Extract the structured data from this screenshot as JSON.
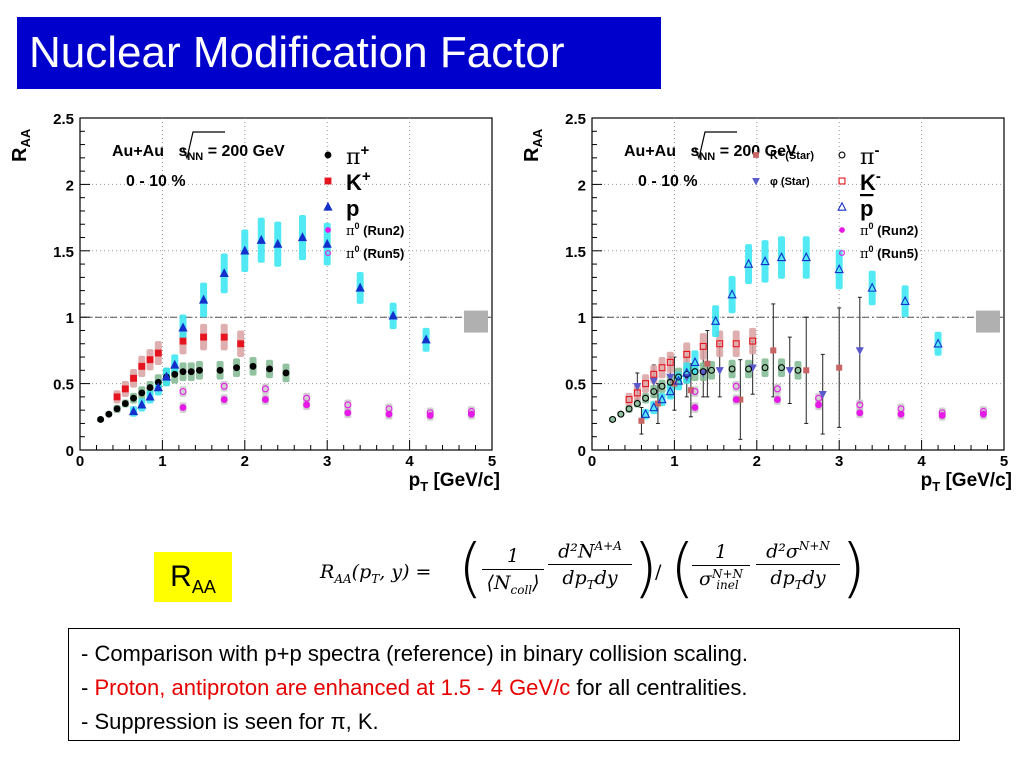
{
  "title": "Nuclear Modification Factor",
  "raa_box": {
    "main": "R",
    "sub": "AA"
  },
  "formula": {
    "lhs": "R",
    "lhs_sub": "AA",
    "lhs_args": "(p",
    "lhs_args_sub": "T",
    "lhs_args_end": ", y) =",
    "frac1_num": "1",
    "frac1_den": "⟨N",
    "frac1_den_sub": "coll",
    "frac1_den_end": "⟩",
    "frac2_num": "d²N",
    "frac2_num_sup": "A+A",
    "frac2_den": "dp",
    "frac2_den_sub": "T",
    "frac2_den_end": "dy",
    "divide": "/",
    "frac3_num": "1",
    "frac3_den": "σ",
    "frac3_den_sup": "N+N",
    "frac3_den_sub": "inel",
    "frac4_num": "d²σ",
    "frac4_num_sup": "N+N",
    "frac4_den": "dp",
    "frac4_den_sub": "T",
    "frac4_den_end": "dy"
  },
  "notes": {
    "line1": "- Comparison with p+p spectra (reference) in binary collision scaling.",
    "line2_prefix": "- ",
    "line2_red": "Proton, antiproton are enhanced at 1.5 - 4 GeV/c",
    "line2_suffix": " for all centralities.",
    "line3": "- Suppression is seen for π, K."
  },
  "colors": {
    "title_bg": "#0000cc",
    "raa_bg": "#ffff00",
    "red_text": "#e60000",
    "sys_cyan": "#33e6f2",
    "sys_green": "#7fb98f",
    "sys_red": "#d9a0a0",
    "pi": "#000000",
    "k": "#e6141e",
    "p": "#1430cc",
    "pi0": "#e619e6",
    "kstar": "#c86464",
    "phi": "#5a5acc"
  },
  "chart_data": [
    {
      "type": "scatter",
      "system": "Au+Au",
      "sqrt_label": "s",
      "sqrt_sub": "NN",
      "energy": "= 200 GeV",
      "centrality": "0 - 10 %",
      "ylabel": "R",
      "ylabel_sub": "AA",
      "xlabel": "p",
      "xlabel_sub": "T",
      "xlabel_unit": "[GeV/c]",
      "xlim": [
        0,
        5
      ],
      "ylim": [
        0,
        2.5
      ],
      "xticks": [
        "0",
        "1",
        "2",
        "3",
        "4",
        "5"
      ],
      "yticks": [
        "0",
        "0.5",
        "1",
        "1.5",
        "2",
        "2.5"
      ],
      "reference_line": 1,
      "legend_position": "top-right",
      "series": [
        {
          "name": "π",
          "name_sup": "+",
          "marker": "circle",
          "filled": true,
          "color": "#000000",
          "sys_color": "#7fb98f",
          "x": [
            0.25,
            0.35,
            0.45,
            0.55,
            0.65,
            0.75,
            0.85,
            0.95,
            1.05,
            1.15,
            1.25,
            1.35,
            1.45,
            1.7,
            1.9,
            2.1,
            2.3,
            2.5
          ],
          "y": [
            0.23,
            0.27,
            0.31,
            0.35,
            0.39,
            0.43,
            0.47,
            0.51,
            0.55,
            0.57,
            0.59,
            0.59,
            0.6,
            0.6,
            0.62,
            0.63,
            0.61,
            0.58
          ],
          "sys": [
            0.02,
            0.02,
            0.03,
            0.03,
            0.04,
            0.05,
            0.05,
            0.06,
            0.07,
            0.07,
            0.07,
            0.07,
            0.07,
            0.07,
            0.07,
            0.07,
            0.07,
            0.07
          ]
        },
        {
          "name": "K",
          "name_sup": "+",
          "marker": "square",
          "filled": true,
          "color": "#e6141e",
          "sys_color": "#d9a0a0",
          "x": [
            0.45,
            0.55,
            0.65,
            0.75,
            0.85,
            0.95,
            1.25,
            1.5,
            1.75,
            1.95
          ],
          "y": [
            0.4,
            0.46,
            0.54,
            0.63,
            0.68,
            0.73,
            0.82,
            0.85,
            0.85,
            0.8
          ],
          "sys": [
            0.05,
            0.06,
            0.07,
            0.08,
            0.08,
            0.09,
            0.1,
            0.1,
            0.1,
            0.1
          ]
        },
        {
          "name": "p",
          "name_sup": "",
          "marker": "triangle",
          "filled": true,
          "color": "#1430cc",
          "sys_color": "#33e6f2",
          "x": [
            0.65,
            0.75,
            0.85,
            0.95,
            1.05,
            1.15,
            1.25,
            1.5,
            1.75,
            2.0,
            2.2,
            2.4,
            2.7,
            3.0,
            3.4,
            3.8,
            4.2
          ],
          "y": [
            0.29,
            0.34,
            0.4,
            0.47,
            0.55,
            0.64,
            0.92,
            1.13,
            1.33,
            1.5,
            1.58,
            1.55,
            1.6,
            1.55,
            1.22,
            1.01,
            0.83
          ],
          "sys": [
            0.04,
            0.05,
            0.05,
            0.06,
            0.07,
            0.08,
            0.1,
            0.13,
            0.15,
            0.16,
            0.17,
            0.17,
            0.17,
            0.16,
            0.12,
            0.1,
            0.09
          ]
        },
        {
          "name": "π",
          "name_sup": "0",
          "name_suffix": " (Run2)",
          "marker": "circle",
          "filled": true,
          "color": "#e619e6",
          "sys_color": "#c8c8c8",
          "x": [
            1.25,
            1.75,
            2.25,
            2.75,
            3.25,
            3.75,
            4.25,
            4.75
          ],
          "y": [
            0.32,
            0.38,
            0.38,
            0.34,
            0.28,
            0.27,
            0.26,
            0.27
          ],
          "sys": [
            0.04,
            0.04,
            0.04,
            0.04,
            0.04,
            0.04,
            0.04,
            0.04
          ]
        },
        {
          "name": "π",
          "name_sup": "0",
          "name_suffix": " (Run5)",
          "marker": "circle",
          "filled": false,
          "color": "#e619e6",
          "sys_color": "#c8c8c8",
          "x": [
            1.25,
            1.75,
            2.25,
            2.75,
            3.25,
            3.75,
            4.25,
            4.75
          ],
          "y": [
            0.44,
            0.48,
            0.46,
            0.39,
            0.34,
            0.31,
            0.28,
            0.29
          ],
          "sys": [
            0.04,
            0.04,
            0.04,
            0.04,
            0.04,
            0.04,
            0.04,
            0.04
          ]
        }
      ]
    },
    {
      "type": "scatter",
      "system": "Au+Au",
      "sqrt_label": "s",
      "sqrt_sub": "NN",
      "energy": "= 200 GeV",
      "centrality": "0 - 10 %",
      "ylabel": "R",
      "ylabel_sub": "AA",
      "xlabel": "p",
      "xlabel_sub": "T",
      "xlabel_unit": "[GeV/c]",
      "xlim": [
        0,
        5
      ],
      "ylim": [
        0,
        2.5
      ],
      "xticks": [
        "0",
        "1",
        "2",
        "3",
        "4",
        "5"
      ],
      "yticks": [
        "0",
        "0.5",
        "1",
        "1.5",
        "2",
        "2.5"
      ],
      "reference_line": 1,
      "legend_position": "top-right",
      "series": [
        {
          "name": "K* (Star)",
          "name_sup": "",
          "marker": "square",
          "filled": true,
          "color": "#c86464",
          "sys_color": "#c86464",
          "star": true,
          "small": true,
          "x": [
            0.6,
            0.8,
            1.0,
            1.2,
            1.4,
            1.8,
            2.2,
            2.6,
            3.0
          ],
          "y": [
            0.22,
            0.35,
            0.5,
            0.45,
            0.65,
            0.38,
            0.75,
            0.6,
            0.62
          ],
          "sys": [
            0.1,
            0.15,
            0.2,
            0.2,
            0.25,
            0.3,
            0.35,
            0.4,
            0.45
          ]
        },
        {
          "name": "φ (Star)",
          "name_sup": "",
          "marker": "triangle-down",
          "filled": true,
          "color": "#5a5acc",
          "sys_color": "#5a5acc",
          "star": true,
          "small": true,
          "x": [
            0.55,
            0.75,
            0.95,
            1.15,
            1.35,
            1.55,
            1.95,
            2.4,
            2.8,
            3.25
          ],
          "y": [
            0.48,
            0.52,
            0.55,
            0.55,
            0.58,
            0.6,
            0.62,
            0.6,
            0.42,
            0.75
          ],
          "sys": [
            0.1,
            0.12,
            0.15,
            0.15,
            0.18,
            0.2,
            0.2,
            0.25,
            0.3,
            0.4
          ]
        },
        {
          "name": "π",
          "name_sup": "-",
          "marker": "circle",
          "filled": false,
          "color": "#000000",
          "sys_color": "#7fb98f",
          "x": [
            0.25,
            0.35,
            0.45,
            0.55,
            0.65,
            0.75,
            0.85,
            0.95,
            1.05,
            1.15,
            1.25,
            1.35,
            1.45,
            1.7,
            1.9,
            2.1,
            2.3,
            2.5
          ],
          "y": [
            0.23,
            0.27,
            0.31,
            0.35,
            0.39,
            0.44,
            0.48,
            0.51,
            0.55,
            0.57,
            0.59,
            0.59,
            0.6,
            0.61,
            0.61,
            0.62,
            0.62,
            0.6
          ],
          "sys": [
            0.02,
            0.02,
            0.03,
            0.03,
            0.04,
            0.05,
            0.05,
            0.06,
            0.07,
            0.07,
            0.07,
            0.07,
            0.07,
            0.07,
            0.07,
            0.07,
            0.07,
            0.07
          ]
        },
        {
          "name": "K",
          "name_sup": "-",
          "marker": "square",
          "filled": false,
          "color": "#e6141e",
          "sys_color": "#d9a0a0",
          "x": [
            0.45,
            0.55,
            0.65,
            0.75,
            0.85,
            0.95,
            1.15,
            1.35,
            1.55,
            1.75,
            1.95
          ],
          "y": [
            0.38,
            0.43,
            0.5,
            0.57,
            0.62,
            0.66,
            0.72,
            0.78,
            0.8,
            0.8,
            0.82
          ],
          "sys": [
            0.05,
            0.06,
            0.07,
            0.07,
            0.08,
            0.08,
            0.09,
            0.1,
            0.1,
            0.1,
            0.1
          ]
        },
        {
          "name": "p",
          "name_bar": true,
          "name_sup": "",
          "marker": "triangle",
          "filled": false,
          "color": "#1430cc",
          "sys_color": "#33e6f2",
          "x": [
            0.65,
            0.75,
            0.85,
            0.95,
            1.05,
            1.15,
            1.25,
            1.5,
            1.7,
            1.9,
            2.1,
            2.3,
            2.6,
            3.0,
            3.4,
            3.8,
            4.2
          ],
          "y": [
            0.27,
            0.32,
            0.38,
            0.44,
            0.52,
            0.58,
            0.66,
            0.97,
            1.17,
            1.4,
            1.42,
            1.45,
            1.45,
            1.36,
            1.22,
            1.12,
            0.8
          ],
          "sys": [
            0.04,
            0.05,
            0.05,
            0.06,
            0.07,
            0.08,
            0.09,
            0.12,
            0.14,
            0.15,
            0.16,
            0.16,
            0.16,
            0.15,
            0.13,
            0.12,
            0.09
          ]
        },
        {
          "name": "π",
          "name_sup": "0",
          "name_suffix": " (Run2)",
          "marker": "circle",
          "filled": true,
          "color": "#e619e6",
          "sys_color": "#c8c8c8",
          "x": [
            1.25,
            1.75,
            2.25,
            2.75,
            3.25,
            3.75,
            4.25,
            4.75
          ],
          "y": [
            0.32,
            0.38,
            0.38,
            0.34,
            0.28,
            0.27,
            0.26,
            0.27
          ],
          "sys": [
            0.04,
            0.04,
            0.04,
            0.04,
            0.04,
            0.04,
            0.04,
            0.04
          ]
        },
        {
          "name": "π",
          "name_sup": "0",
          "name_suffix": " (Run5)",
          "marker": "circle",
          "filled": false,
          "color": "#e619e6",
          "sys_color": "#c8c8c8",
          "x": [
            1.25,
            1.75,
            2.25,
            2.75,
            3.25,
            3.75,
            4.25,
            4.75
          ],
          "y": [
            0.44,
            0.48,
            0.46,
            0.39,
            0.34,
            0.31,
            0.28,
            0.29
          ],
          "sys": [
            0.04,
            0.04,
            0.04,
            0.04,
            0.04,
            0.04,
            0.04,
            0.04
          ]
        }
      ]
    }
  ]
}
